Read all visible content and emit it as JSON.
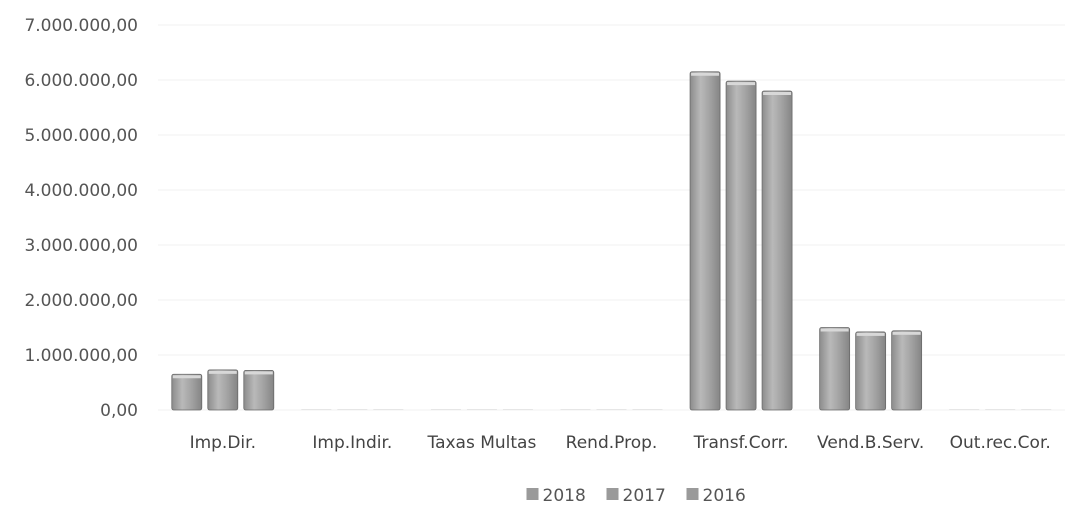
{
  "chart_data": {
    "type": "bar",
    "categories": [
      "Imp.Dir.",
      "Imp.Indir.",
      "Taxas Multas",
      "Rend.Prop.",
      "Transf.Corr.",
      "Vend.B.Serv.",
      "Out.rec.Cor."
    ],
    "series": [
      {
        "name": "2018",
        "values": [
          650000,
          0,
          0,
          0,
          6150000,
          1500000,
          0
        ]
      },
      {
        "name": "2017",
        "values": [
          730000,
          0,
          0,
          0,
          5980000,
          1420000,
          0
        ]
      },
      {
        "name": "2016",
        "values": [
          720000,
          0,
          0,
          0,
          5800000,
          1440000,
          0
        ]
      }
    ],
    "y_ticks": [
      "0,00",
      "1.000.000,00",
      "2.000.000,00",
      "3.000.000,00",
      "4.000.000,00",
      "5.000.000,00",
      "6.000.000,00",
      "7.000.000,00"
    ],
    "ylim": [
      0,
      7000000
    ],
    "title": "",
    "xlabel": "",
    "ylabel": "",
    "legend_position": "bottom",
    "grid": true,
    "colors": {
      "bar_fill": "#9c9c9c",
      "bar_highlight": "#c4c4c4",
      "bar_edge": "#6a6a6a",
      "legend_marker": "#9a9a9a"
    }
  }
}
